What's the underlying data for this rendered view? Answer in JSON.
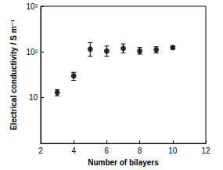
{
  "chart_data": {
    "type": "scatter",
    "xlabel": "Number of bilayers",
    "ylabel": "Electrical conductivity / S m⁻¹",
    "x": [
      3,
      4,
      5,
      6,
      7,
      8,
      9,
      10
    ],
    "values": [
      13,
      30,
      115,
      105,
      120,
      105,
      112,
      125
    ],
    "error_minus": [
      2,
      6,
      35,
      25,
      25,
      15,
      17,
      10
    ],
    "error_plus": [
      2,
      6,
      45,
      30,
      30,
      20,
      18,
      10
    ],
    "color": "#000000",
    "marker": "circle",
    "xlim": [
      2,
      12
    ],
    "xticks": [
      2,
      4,
      6,
      8,
      10,
      12
    ],
    "ylim": [
      1,
      1000
    ],
    "yticks": [
      10,
      {
        "value": 100,
        "label": "10²"
      },
      {
        "value": 1000,
        "label": "10³"
      }
    ],
    "log": "y",
    "grid": false
  }
}
